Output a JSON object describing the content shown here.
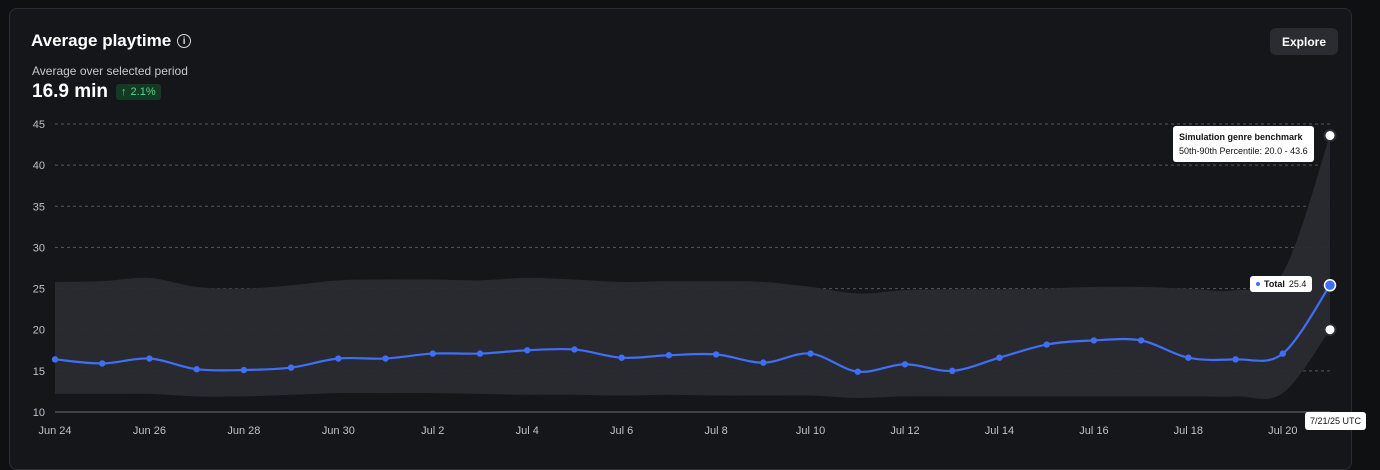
{
  "header": {
    "title": "Average playtime",
    "info_icon": "info-icon",
    "explore_label": "Explore",
    "subtitle": "Average over selected period",
    "metric": "16.9 min",
    "delta": "2.1%",
    "delta_icon": "arrow-up-icon"
  },
  "tooltips": {
    "benchmark_title": "Simulation genre benchmark",
    "benchmark_range": "50th-90th Percentile: 20.0 - 43.6",
    "total_label": "Total",
    "total_value": "25.4",
    "date": "7/21/25 UTC"
  },
  "colors": {
    "line": "#3f6ef7",
    "band": "#2a2b30",
    "delta_bg": "#123b24",
    "delta_text": "#5bd38a"
  },
  "chart_data": {
    "type": "line",
    "title": "Average playtime",
    "ylim": [
      10,
      45
    ],
    "yticks": [
      10,
      15,
      20,
      25,
      30,
      35,
      40,
      45
    ],
    "xtick_labels": [
      "Jun 24",
      "Jun 26",
      "Jun 28",
      "Jun 30",
      "Jul 2",
      "Jul 4",
      "Jul 6",
      "Jul 8",
      "Jul 10",
      "Jul 12",
      "Jul 14",
      "Jul 16",
      "Jul 18",
      "Jul 20"
    ],
    "categories": [
      "Jun 24",
      "Jun 25",
      "Jun 26",
      "Jun 27",
      "Jun 28",
      "Jun 29",
      "Jun 30",
      "Jul 1",
      "Jul 2",
      "Jul 3",
      "Jul 4",
      "Jul 5",
      "Jul 6",
      "Jul 7",
      "Jul 8",
      "Jul 9",
      "Jul 10",
      "Jul 11",
      "Jul 12",
      "Jul 13",
      "Jul 14",
      "Jul 15",
      "Jul 16",
      "Jul 17",
      "Jul 18",
      "Jul 19",
      "Jul 20",
      "Jul 21"
    ],
    "grid": true,
    "series": [
      {
        "name": "Total",
        "values": [
          16.4,
          15.9,
          16.5,
          15.2,
          15.1,
          15.4,
          16.5,
          16.5,
          17.1,
          17.1,
          17.5,
          17.6,
          16.6,
          16.9,
          17.0,
          16.0,
          17.1,
          14.9,
          15.8,
          15.0,
          16.6,
          18.2,
          18.7,
          18.7,
          16.6,
          16.4,
          17.1,
          25.4
        ]
      }
    ],
    "band": {
      "name": "Simulation genre benchmark",
      "lower": [
        12.2,
        12.2,
        12.2,
        11.9,
        11.9,
        12.1,
        12.3,
        12.3,
        12.3,
        12.2,
        12.1,
        12.1,
        12.0,
        12.1,
        12.0,
        12.0,
        12.0,
        11.7,
        11.9,
        11.9,
        11.9,
        11.9,
        11.9,
        11.9,
        11.9,
        11.9,
        12.3,
        20.0
      ],
      "upper": [
        25.8,
        25.9,
        26.3,
        25.2,
        25.0,
        25.4,
        26.0,
        26.1,
        26.1,
        26.0,
        26.3,
        26.1,
        25.8,
        25.9,
        25.9,
        25.8,
        25.2,
        24.4,
        24.8,
        24.9,
        24.9,
        25.0,
        25.2,
        25.2,
        25.0,
        24.8,
        26.9,
        43.6
      ]
    }
  }
}
